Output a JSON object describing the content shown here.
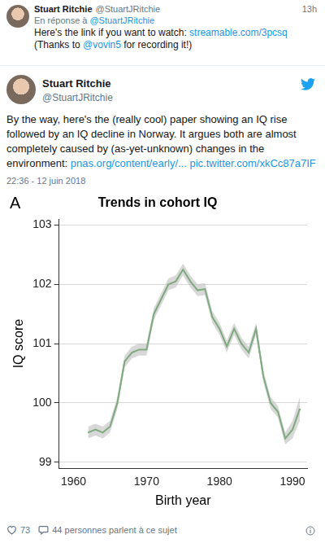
{
  "reply_tweet": {
    "name": "Stuart Ritchie",
    "handle": "@StuartJRitchie",
    "time": "13h",
    "reply_prefix": "En réponse à",
    "reply_to": "@StuartJRitchie",
    "text": [
      {
        "text": "Here's the link if you want to watch: ",
        "link": false
      },
      {
        "text": "streamable.com/3pcsq",
        "link": true
      },
      {
        "text": " (Thanks to ",
        "link": false
      },
      {
        "text": "@vovin5",
        "link": true
      },
      {
        "text": " for recording it!)",
        "link": false
      }
    ]
  },
  "main_tweet": {
    "name": "Stuart Ritchie",
    "handle": "@StuartJRitchie",
    "text": [
      {
        "text": "By the way, here's the (really cool) paper showing an IQ rise followed by an IQ decline in Norway. It argues both are almost completely caused by (as-yet-unknown) changes in the environment: ",
        "link": false
      },
      {
        "text": "pnas.org/content/early/...",
        "link": true
      },
      {
        "text": " ",
        "link": false
      },
      {
        "text": "pic.twitter.com/xkCc87a7IF",
        "link": true
      }
    ],
    "timestamp": "22:36 - 12 juin 2018",
    "likes": 73,
    "conversation": "44 personnes parlent à ce sujet"
  },
  "chart_data": {
    "type": "line",
    "panel_label": "A",
    "title": "Trends in cohort IQ",
    "x_label": "Birth year",
    "y_label": "IQ score",
    "x": [
      1962,
      1963,
      1964,
      1965,
      1966,
      1967,
      1968,
      1969,
      1970,
      1971,
      1972,
      1973,
      1974,
      1975,
      1976,
      1977,
      1978,
      1979,
      1980,
      1981,
      1982,
      1983,
      1984,
      1985,
      1986,
      1987,
      1988,
      1989,
      1990,
      1991
    ],
    "values": [
      99.5,
      99.55,
      99.5,
      99.6,
      100.0,
      100.7,
      100.85,
      100.9,
      100.9,
      101.5,
      101.75,
      102.0,
      102.05,
      102.25,
      102.05,
      101.9,
      101.92,
      101.45,
      101.25,
      100.95,
      101.25,
      101.0,
      100.85,
      101.25,
      100.45,
      100.0,
      99.85,
      99.4,
      99.55,
      99.9
    ],
    "lower": [
      99.4,
      99.45,
      99.4,
      99.5,
      99.9,
      100.6,
      100.75,
      100.8,
      100.8,
      101.4,
      101.65,
      101.9,
      101.95,
      102.15,
      101.95,
      101.8,
      101.82,
      101.35,
      101.15,
      100.85,
      101.15,
      100.9,
      100.75,
      101.15,
      100.35,
      99.9,
      99.75,
      99.3,
      99.4,
      99.7
    ],
    "upper": [
      99.6,
      99.65,
      99.6,
      99.7,
      100.1,
      100.8,
      100.95,
      101.0,
      101.0,
      101.6,
      101.85,
      102.1,
      102.15,
      102.35,
      102.15,
      102.0,
      102.02,
      101.55,
      101.35,
      101.05,
      101.35,
      101.1,
      100.95,
      101.35,
      100.55,
      100.1,
      99.95,
      99.5,
      99.7,
      100.1
    ],
    "color": "#228b22",
    "xlim": [
      1958,
      1992
    ],
    "xticks": [
      1960,
      1970,
      1980,
      1990
    ],
    "ylim": [
      98.9,
      103.1
    ],
    "yticks": [
      99,
      100,
      101,
      102,
      103
    ],
    "grid": true
  }
}
